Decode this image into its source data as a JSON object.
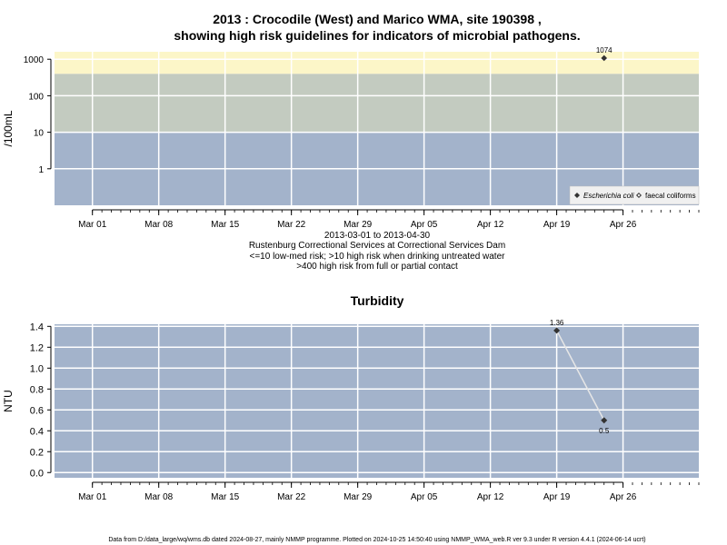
{
  "figure": {
    "title_line1": "2013 : Crocodile (West) and Marico WMA, site 190398 ,",
    "title_line2": "showing high risk guidelines for indicators of microbial pathogens.",
    "subtitle": [
      "2013-03-01 to 2013-04-30",
      "Rustenburg Correctional Services at Correctional Services Dam",
      "<=10 low-med risk; >10 high risk when drinking untreated water",
      ">400 high risk from full or partial contact"
    ],
    "footer": "Data from D:/data_large/wq/wms.db dated 2024-08-27, mainly NMMP programme. Plotted on 2024-10-25 14:50:40 using NMMP_WMA_web.R ver 9.3 under R version 4.4.1 (2024-06-14 ucrt)"
  },
  "chart_data": [
    {
      "type": "scatter",
      "title": "",
      "ylabel": "/100mL",
      "yscale": "log",
      "ylim": [
        0.1,
        1600
      ],
      "yticks": [
        1,
        10,
        100,
        1000
      ],
      "ytick_labels": [
        "1",
        "10",
        "100",
        "1000"
      ],
      "xlim": [
        "2013-02-25",
        "2013-05-04"
      ],
      "xticks": [
        "2013-03-01",
        "2013-03-08",
        "2013-03-15",
        "2013-03-22",
        "2013-03-29",
        "2013-04-05",
        "2013-04-12",
        "2013-04-19",
        "2013-04-26"
      ],
      "xtick_labels": [
        "Mar 01",
        "Mar 08",
        "Mar 15",
        "Mar 22",
        "Mar 29",
        "Apr 05",
        "Apr 12",
        "Apr 19",
        "Apr 26"
      ],
      "grid": true,
      "bands": [
        {
          "from": 0.1,
          "to": 10,
          "color": "#a3b3cb"
        },
        {
          "from": 10,
          "to": 400,
          "color": "#c3cbc0"
        },
        {
          "from": 400,
          "to": 1600,
          "color": "#fcf6c8"
        }
      ],
      "series": [
        {
          "name": "Escherichia coli",
          "marker": "filled-diamond",
          "color": "#333333",
          "x": [
            "2013-04-24"
          ],
          "y": [
            1074
          ],
          "labels": [
            "1074"
          ]
        },
        {
          "name": "faecal coliforms",
          "marker": "open-diamond",
          "color": "#333333",
          "x": [],
          "y": [],
          "labels": []
        }
      ],
      "legend_position": "bottom-right"
    },
    {
      "type": "line",
      "title": "Turbidity",
      "ylabel": "NTU",
      "ylim": [
        -0.05,
        1.42
      ],
      "yticks": [
        0.0,
        0.2,
        0.4,
        0.6,
        0.8,
        1.0,
        1.2,
        1.4
      ],
      "ytick_labels": [
        "0.0",
        "0.2",
        "0.4",
        "0.6",
        "0.8",
        "1.0",
        "1.2",
        "1.4"
      ],
      "xlim": [
        "2013-02-25",
        "2013-05-04"
      ],
      "xticks": [
        "2013-03-01",
        "2013-03-08",
        "2013-03-15",
        "2013-03-22",
        "2013-03-29",
        "2013-04-05",
        "2013-04-12",
        "2013-04-19",
        "2013-04-26"
      ],
      "xtick_labels": [
        "Mar 01",
        "Mar 08",
        "Mar 15",
        "Mar 22",
        "Mar 29",
        "Apr 05",
        "Apr 12",
        "Apr 19",
        "Apr 26"
      ],
      "grid": true,
      "background": "#a3b3cb",
      "series": [
        {
          "name": "",
          "marker": "filled-diamond",
          "color": "#333333",
          "line_color": "#e6e6e6",
          "x": [
            "2013-04-19",
            "2013-04-24"
          ],
          "y": [
            1.36,
            0.5
          ],
          "labels": [
            "1.36",
            "0.5"
          ]
        }
      ]
    }
  ]
}
